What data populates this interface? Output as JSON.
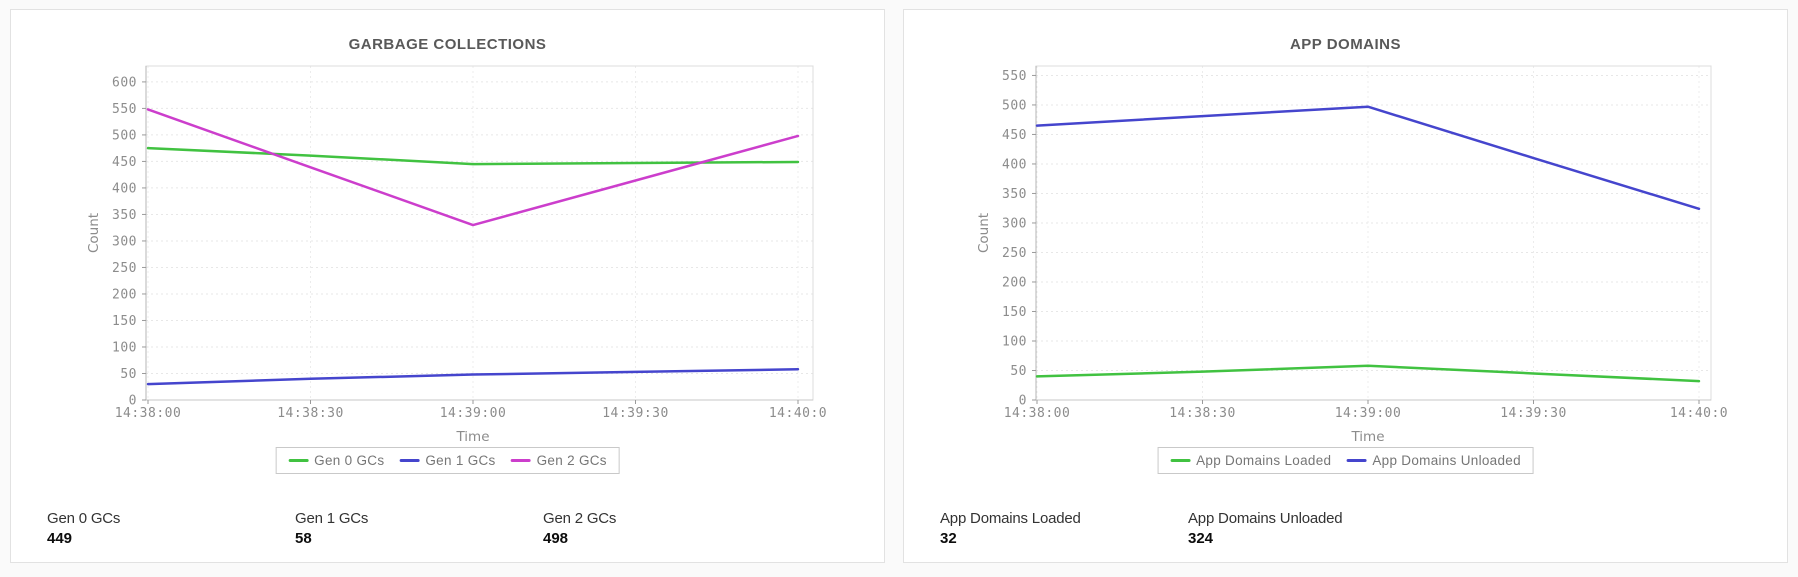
{
  "page": {
    "background": "#fafafa"
  },
  "panels": [
    {
      "title": "GARBAGE COLLECTIONS",
      "stats": [
        {
          "label": "Gen 0 GCs",
          "value": "449"
        },
        {
          "label": "Gen 1 GCs",
          "value": "58"
        },
        {
          "label": "Gen 2 GCs",
          "value": "498"
        }
      ]
    },
    {
      "title": "APP DOMAINS",
      "stats": [
        {
          "label": "App Domains Loaded",
          "value": "32"
        },
        {
          "label": "App Domains Unloaded",
          "value": "324"
        }
      ]
    }
  ],
  "chart_data": [
    {
      "type": "line",
      "title": "GARBAGE COLLECTIONS",
      "xlabel": "Time",
      "ylabel": "Count",
      "categories": [
        "14:38:00",
        "14:38:30",
        "14:39:00",
        "14:39:30",
        "14:40:0"
      ],
      "series": [
        {
          "name": "Gen 0 GCs",
          "color": "#41c241",
          "values": [
            475,
            461,
            445,
            447,
            449
          ]
        },
        {
          "name": "Gen 1 GCs",
          "color": "#4545cd",
          "values": [
            30,
            40,
            48,
            53,
            58
          ]
        },
        {
          "name": "Gen 2 GCs",
          "color": "#cc3ecc",
          "values": [
            548,
            439,
            330,
            414,
            498
          ]
        }
      ],
      "yticks": [
        0,
        50,
        100,
        150,
        200,
        250,
        300,
        350,
        400,
        450,
        500,
        550,
        600
      ],
      "ylim": [
        0,
        630
      ],
      "grid": true,
      "legend_position": "bottom"
    },
    {
      "type": "line",
      "title": "APP DOMAINS",
      "xlabel": "Time",
      "ylabel": "Count",
      "categories": [
        "14:38:00",
        "14:38:30",
        "14:39:00",
        "14:39:30",
        "14:40:0"
      ],
      "series": [
        {
          "name": "App Domains Loaded",
          "color": "#41c241",
          "values": [
            40,
            48,
            58,
            45,
            32
          ]
        },
        {
          "name": "App Domains Unloaded",
          "color": "#4545cd",
          "values": [
            465,
            481,
            497,
            410,
            324
          ]
        }
      ],
      "yticks": [
        0,
        50,
        100,
        150,
        200,
        250,
        300,
        350,
        400,
        450,
        500,
        550
      ],
      "ylim": [
        0,
        566
      ],
      "grid": true,
      "legend_position": "bottom"
    }
  ]
}
